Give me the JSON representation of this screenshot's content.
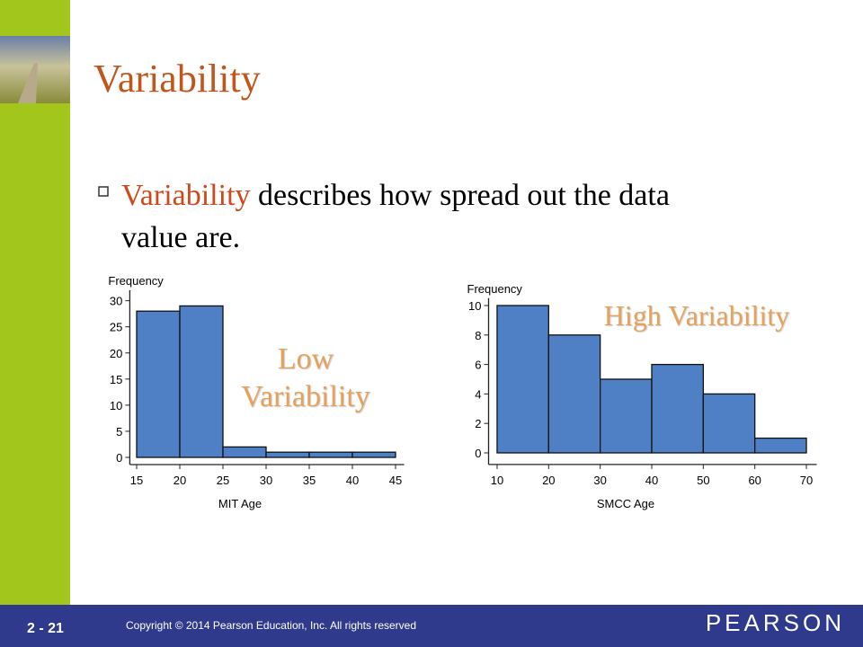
{
  "slide": {
    "title": "Variability",
    "bullet": {
      "term": "Variability",
      "text": " describes how spread out the data",
      "text_line2": "value are."
    },
    "footer": {
      "page": "2 - 21",
      "copyright": "Copyright © 2014 Pearson Education, Inc.  All rights reserved",
      "brand": "PEARSON"
    }
  },
  "chart_data": [
    {
      "type": "histogram",
      "ylabel": "Frequency",
      "xlabel": "MIT Age",
      "bins": [
        15,
        20,
        25,
        30,
        35,
        40,
        45
      ],
      "values": [
        28,
        29,
        2,
        1,
        1,
        1
      ],
      "color": "#4f7fc4",
      "xlim": [
        14,
        46
      ],
      "xticks": [
        15,
        20,
        25,
        30,
        35,
        40,
        45
      ],
      "ylim": [
        0,
        32
      ],
      "yticks": [
        0,
        5,
        10,
        15,
        20,
        25,
        30
      ],
      "annotation": [
        "Low",
        "Variability"
      ]
    },
    {
      "type": "histogram",
      "ylabel": "Frequency",
      "xlabel": "SMCC Age",
      "bins": [
        10,
        20,
        30,
        40,
        50,
        60,
        70
      ],
      "values": [
        10,
        8,
        5,
        6,
        4,
        1
      ],
      "color": "#4f7fc4",
      "xlim": [
        8,
        72
      ],
      "xticks": [
        10,
        20,
        30,
        40,
        50,
        60,
        70
      ],
      "ylim": [
        -0.3,
        10.5
      ],
      "yticks": [
        0,
        2,
        4,
        6,
        8,
        10
      ],
      "annotation": [
        "High Variability"
      ]
    }
  ]
}
